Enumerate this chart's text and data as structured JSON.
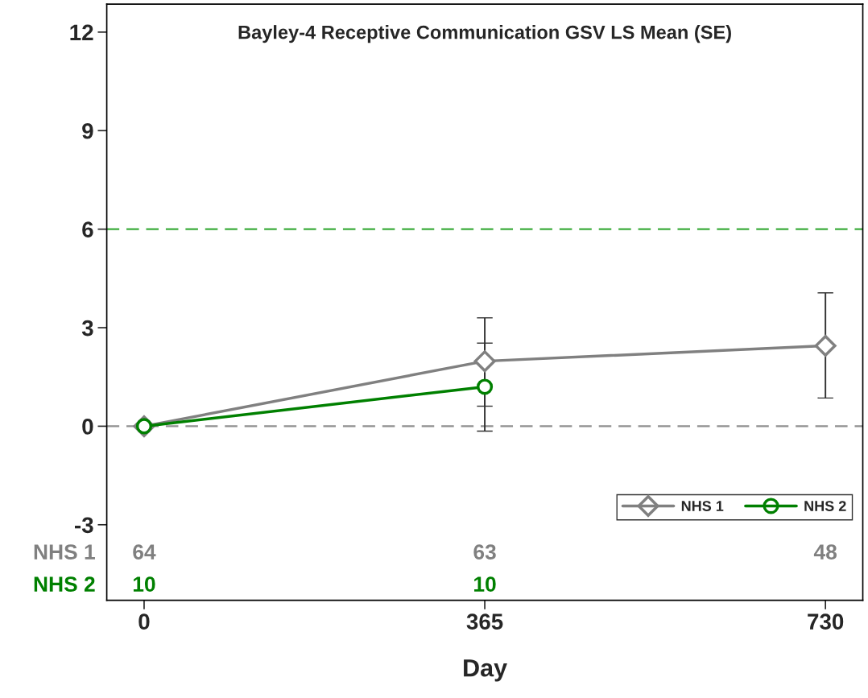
{
  "chart_data": {
    "type": "line",
    "title": "Bayley-4 Receptive Communication GSV LS Mean (SE)",
    "xlabel": "Day",
    "series": [
      {
        "name": "NHS 1",
        "color": "#808080",
        "marker": "diamond",
        "x": [
          0,
          365,
          730
        ],
        "values": [
          0,
          1.98,
          2.45
        ],
        "errors": [
          null,
          [
            0.61,
            3.3
          ],
          [
            0.86,
            4.06
          ]
        ]
      },
      {
        "name": "NHS 2",
        "color": "#008000",
        "marker": "circle",
        "x": [
          0,
          365
        ],
        "values": [
          0,
          1.2
        ],
        "errors": [
          null,
          [
            -0.15,
            2.53
          ]
        ]
      }
    ],
    "xlim": [
      -40,
      770
    ],
    "xticks": [
      0,
      365,
      730
    ],
    "ylim": [
      -5.3,
      12.85
    ],
    "yticks": [
      -3,
      0,
      3,
      6,
      9,
      12
    ],
    "ref_lines": [
      {
        "axis": "y",
        "value": 6,
        "color": "#3cac3c",
        "line_style": "dashed"
      },
      {
        "axis": "y",
        "value": 0,
        "color": "#909090",
        "line_style": "dashed"
      }
    ],
    "annotations": [
      "NHS 1",
      "64",
      "63",
      "48",
      "NHS 2",
      "10",
      "10"
    ],
    "grid": false,
    "legend": "bottom right"
  }
}
